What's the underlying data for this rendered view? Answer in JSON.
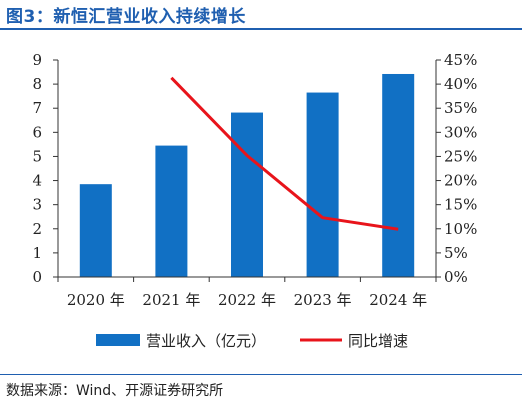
{
  "title": "图3：新恒汇营业收入持续增长",
  "source": "数据来源：Wind、开源证券研究所",
  "colors": {
    "bar": "#1170c4",
    "line": "#e8141b",
    "title": "#1f5fb0"
  },
  "chart_data": {
    "type": "bar",
    "title": "图3：新恒汇营业收入持续增长",
    "categories": [
      "2020 年",
      "2021 年",
      "2022 年",
      "2023 年",
      "2024 年"
    ],
    "series": [
      {
        "name": "营业收入（亿元）",
        "type": "bar",
        "axis": "left",
        "values": [
          3.85,
          5.45,
          6.82,
          7.65,
          8.42
        ]
      },
      {
        "name": "同比增速",
        "type": "line",
        "axis": "right",
        "values": [
          null,
          41.3,
          25.2,
          12.3,
          9.9
        ]
      }
    ],
    "ylim_left": [
      0,
      9
    ],
    "yticks_left": [
      "0",
      "1",
      "2",
      "3",
      "4",
      "5",
      "6",
      "7",
      "8",
      "9"
    ],
    "ylim_right": [
      0,
      45
    ],
    "yticks_right": [
      "0%",
      "5%",
      "10%",
      "15%",
      "20%",
      "25%",
      "30%",
      "35%",
      "40%",
      "45%"
    ],
    "legend": {
      "position": "bottom",
      "items": [
        "营业收入（亿元）",
        "同比增速"
      ]
    },
    "grid": false
  }
}
